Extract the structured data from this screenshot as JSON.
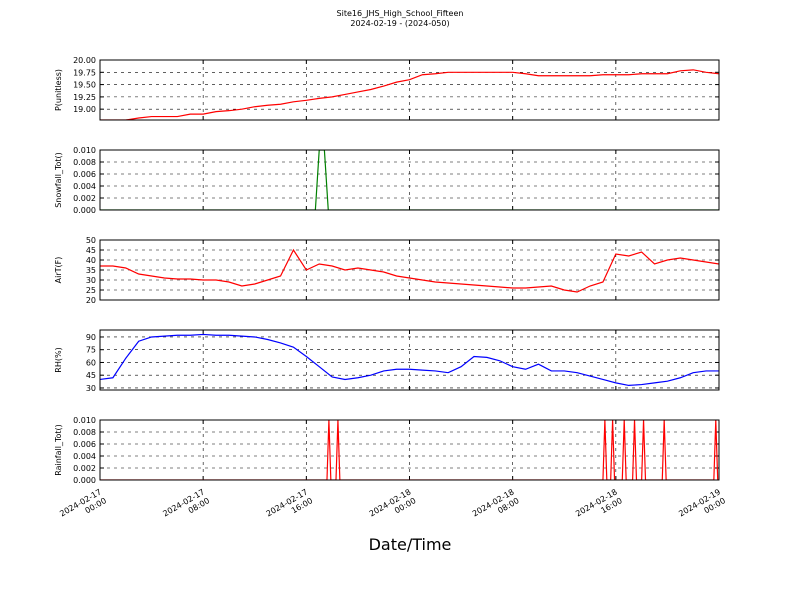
{
  "title": "Site16_JHS_High_School_Fifteen",
  "subtitle": "2024-02-19 - (2024-050)",
  "xlabel": "Date/Time",
  "xlim": [
    0,
    48
  ],
  "xticks": [
    {
      "value": 0,
      "label": "2024-02-17 00:00"
    },
    {
      "value": 8,
      "label": "2024-02-17 08:00"
    },
    {
      "value": 16,
      "label": "2024-02-17 16:00"
    },
    {
      "value": 24,
      "label": "2024-02-18 00:00"
    },
    {
      "value": 32,
      "label": "2024-02-18 08:00"
    },
    {
      "value": 40,
      "label": "2024-02-18 16:00"
    },
    {
      "value": 48,
      "label": "2024-02-19 00:00"
    }
  ],
  "chart_data": [
    {
      "type": "line",
      "ylabel": "P(unitless)",
      "ylim": [
        18.78,
        20.0
      ],
      "grid": true,
      "yticks": [
        {
          "value": 19.0,
          "label": "19.00"
        },
        {
          "value": 19.25,
          "label": "19.25"
        },
        {
          "value": 19.5,
          "label": "19.50"
        },
        {
          "value": 19.75,
          "label": "19.75"
        },
        {
          "value": 20.0,
          "label": "20.00"
        }
      ],
      "x": [
        0,
        1,
        2,
        3,
        4,
        5,
        6,
        7,
        8,
        9,
        10,
        11,
        12,
        13,
        14,
        15,
        16,
        17,
        18,
        19,
        20,
        21,
        22,
        23,
        24,
        25,
        26,
        27,
        28,
        29,
        30,
        31,
        32,
        33,
        34,
        35,
        36,
        37,
        38,
        39,
        40,
        41,
        42,
        43,
        44,
        45,
        46,
        47,
        48
      ],
      "series": [
        {
          "color": "#ff0000",
          "values": [
            18.78,
            18.78,
            18.78,
            18.82,
            18.85,
            18.85,
            18.85,
            18.9,
            18.9,
            18.95,
            18.97,
            19.0,
            19.05,
            19.08,
            19.1,
            19.15,
            19.18,
            19.22,
            19.25,
            19.3,
            19.35,
            19.4,
            19.47,
            19.55,
            19.6,
            19.7,
            19.72,
            19.75,
            19.75,
            19.75,
            19.75,
            19.75,
            19.75,
            19.72,
            19.68,
            19.68,
            19.68,
            19.68,
            19.68,
            19.7,
            19.7,
            19.7,
            19.72,
            19.72,
            19.72,
            19.78,
            19.8,
            19.75,
            19.72
          ]
        }
      ]
    },
    {
      "type": "line",
      "ylabel": "Snowfall_Tot()",
      "ylim": [
        0,
        0.01
      ],
      "grid": true,
      "yticks": [
        {
          "value": 0,
          "label": "0.000"
        },
        {
          "value": 0.002,
          "label": "0.002"
        },
        {
          "value": 0.004,
          "label": "0.004"
        },
        {
          "value": 0.006,
          "label": "0.006"
        },
        {
          "value": 0.008,
          "label": "0.008"
        },
        {
          "value": 0.01,
          "label": "0.010"
        }
      ],
      "x": [
        0,
        16.7,
        17.0,
        17.4,
        17.7,
        48
      ],
      "series": [
        {
          "color": "#008000",
          "values": [
            0,
            0,
            0.01,
            0.01,
            0,
            0
          ]
        }
      ]
    },
    {
      "type": "line",
      "ylabel": "AirT(F)",
      "ylim": [
        20,
        50
      ],
      "grid": true,
      "yticks": [
        20,
        25,
        30,
        35,
        40,
        45,
        50
      ],
      "x": [
        0,
        1,
        2,
        3,
        4,
        5,
        6,
        7,
        8,
        9,
        10,
        11,
        12,
        13,
        14,
        15,
        16,
        17,
        18,
        19,
        20,
        21,
        22,
        23,
        24,
        25,
        26,
        27,
        28,
        29,
        30,
        31,
        32,
        33,
        34,
        35,
        36,
        37,
        38,
        39,
        40,
        41,
        42,
        43,
        44,
        45,
        46,
        47,
        48
      ],
      "series": [
        {
          "color": "#ff0000",
          "values": [
            37,
            37,
            36,
            33,
            32,
            31,
            30.5,
            30.5,
            30,
            30,
            29,
            27,
            28,
            30,
            32,
            45,
            35,
            38,
            37,
            35,
            36,
            35,
            34,
            32,
            31,
            30,
            29,
            28.5,
            28,
            27.5,
            27,
            26.5,
            26,
            26,
            26.5,
            27,
            25,
            24,
            27,
            29,
            43,
            42,
            44,
            38,
            40,
            41,
            40,
            39,
            38
          ]
        }
      ]
    },
    {
      "type": "line",
      "ylabel": "RH(%)",
      "ylim": [
        27.6,
        98.2
      ],
      "grid": true,
      "yticks": [
        30,
        45,
        60,
        75,
        90
      ],
      "x": [
        0,
        1,
        2,
        3,
        4,
        5,
        6,
        7,
        8,
        9,
        10,
        11,
        12,
        13,
        14,
        15,
        16,
        17,
        18,
        19,
        20,
        21,
        22,
        23,
        24,
        25,
        26,
        27,
        28,
        29,
        30,
        31,
        32,
        33,
        34,
        35,
        36,
        37,
        38,
        39,
        40,
        41,
        42,
        43,
        44,
        45,
        46,
        47,
        48
      ],
      "series": [
        {
          "color": "#0000ff",
          "values": [
            40,
            42,
            65,
            85,
            90,
            91,
            92,
            92,
            93,
            92,
            92,
            91,
            90,
            87,
            83,
            78,
            67,
            55,
            43,
            40,
            42,
            45,
            50,
            52,
            52,
            51,
            50,
            48,
            55,
            67,
            66,
            62,
            55,
            52,
            58,
            50,
            50,
            48,
            44,
            40,
            36,
            33,
            34,
            36,
            38,
            42,
            48,
            50,
            50
          ]
        }
      ]
    },
    {
      "type": "line",
      "ylabel": "Rainfall_Tot()",
      "ylim": [
        0,
        0.01
      ],
      "grid": true,
      "yticks": [
        {
          "value": 0,
          "label": "0.000"
        },
        {
          "value": 0.002,
          "label": "0.002"
        },
        {
          "value": 0.004,
          "label": "0.004"
        },
        {
          "value": 0.006,
          "label": "0.006"
        },
        {
          "value": 0.008,
          "label": "0.008"
        },
        {
          "value": 0.01,
          "label": "0.010"
        }
      ],
      "x": [
        0,
        17.6,
        17.75,
        17.9,
        18.3,
        18.45,
        18.6,
        39.0,
        39.15,
        39.3,
        39.6,
        39.75,
        39.9,
        40.5,
        40.65,
        40.8,
        41.3,
        41.45,
        41.6,
        42.0,
        42.15,
        42.3,
        43.6,
        43.75,
        43.9,
        47.6,
        47.75,
        47.9,
        48
      ],
      "series": [
        {
          "color": "#ff0000",
          "values": [
            0,
            0,
            0.01,
            0,
            0,
            0.01,
            0,
            0,
            0.01,
            0,
            0,
            0.01,
            0,
            0,
            0.01,
            0,
            0,
            0.01,
            0,
            0,
            0.01,
            0,
            0,
            0.01,
            0,
            0,
            0.01,
            0,
            0
          ]
        }
      ]
    }
  ]
}
